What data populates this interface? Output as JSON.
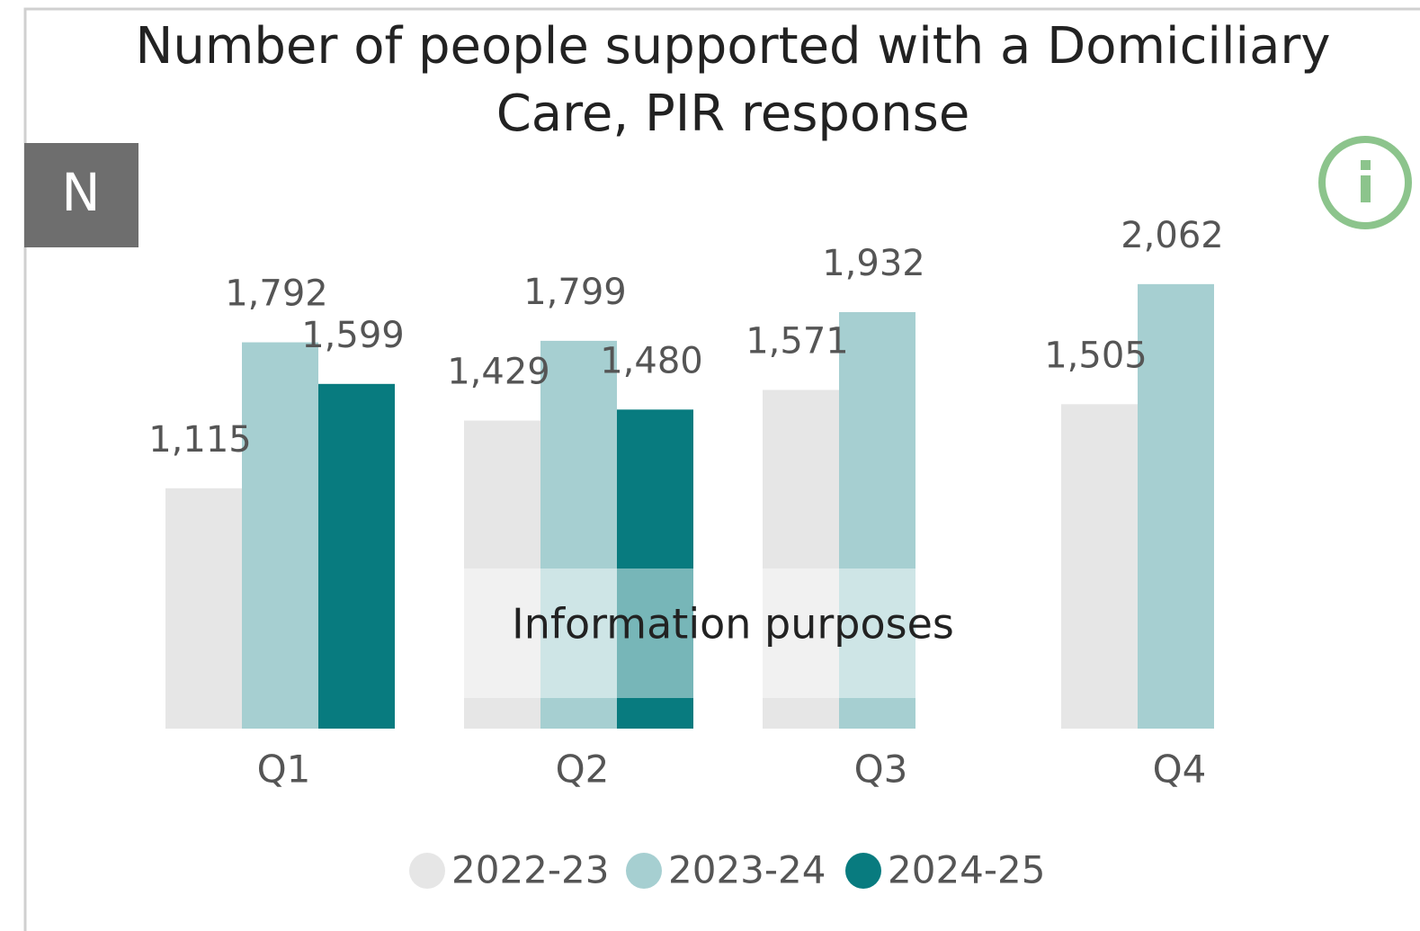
{
  "chart_data": {
    "type": "bar",
    "title": [
      "Number of people supported with a Domiciliary",
      "Care, PIR response"
    ],
    "badge": "N",
    "watermark": "Information purposes",
    "categories": [
      "Q1",
      "Q2",
      "Q3",
      "Q4"
    ],
    "series": [
      {
        "name": "2022-23",
        "color": "#e6e6e6",
        "values": [
          1115,
          1429,
          1571,
          1505
        ],
        "value_labels": [
          "1,115",
          "1,429",
          "1,571",
          "1,505"
        ]
      },
      {
        "name": "2023-24",
        "color": "#a6cfd1",
        "values": [
          1792,
          1799,
          1932,
          2062
        ],
        "value_labels": [
          "1,792",
          "1,799",
          "1,932",
          "2,062"
        ]
      },
      {
        "name": "2024-25",
        "color": "#087b7f",
        "values": [
          1599,
          1480,
          null,
          null
        ],
        "value_labels": [
          "1,599",
          "1,480",
          null,
          null
        ]
      }
    ],
    "ylim": [
      0,
      3380
    ]
  }
}
